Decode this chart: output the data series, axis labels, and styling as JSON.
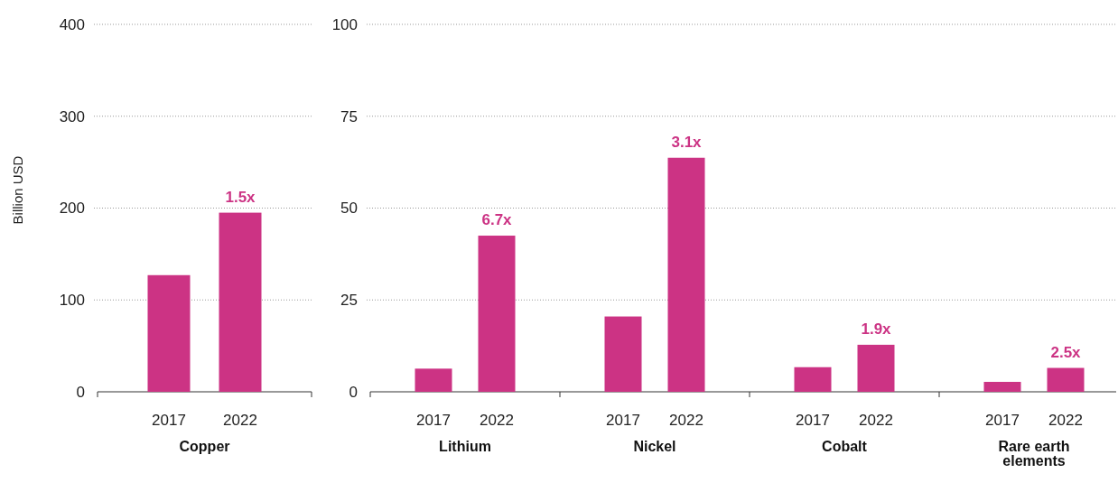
{
  "chart_data": [
    {
      "type": "bar",
      "categories": [
        "2017",
        "2022"
      ],
      "values": [
        127,
        195
      ],
      "color": "#cc3384",
      "ylim": [
        0,
        400
      ],
      "yticks": [
        0,
        100,
        200,
        300,
        400
      ],
      "grid": "y",
      "ylabel": "Billion USD",
      "xlabel": "Copper",
      "annotations": [
        "1.5x"
      ]
    },
    {
      "type": "bar",
      "categories": [
        "2017",
        "2022",
        "2017",
        "2022",
        "2017",
        "2022",
        "2017",
        "2022"
      ],
      "values": [
        6.3,
        42.5,
        20.5,
        63.7,
        6.7,
        12.8,
        2.7,
        6.5
      ],
      "color": "#cc3384",
      "ylim": [
        0,
        100
      ],
      "yticks": [
        0,
        25,
        50,
        75,
        100
      ],
      "grid": "y",
      "annotations": [
        "Lithium",
        "Nickel",
        "Cobalt",
        "Rare earth elements",
        "6.7x",
        "3.1x",
        "1.9x",
        "2.5x"
      ]
    }
  ]
}
